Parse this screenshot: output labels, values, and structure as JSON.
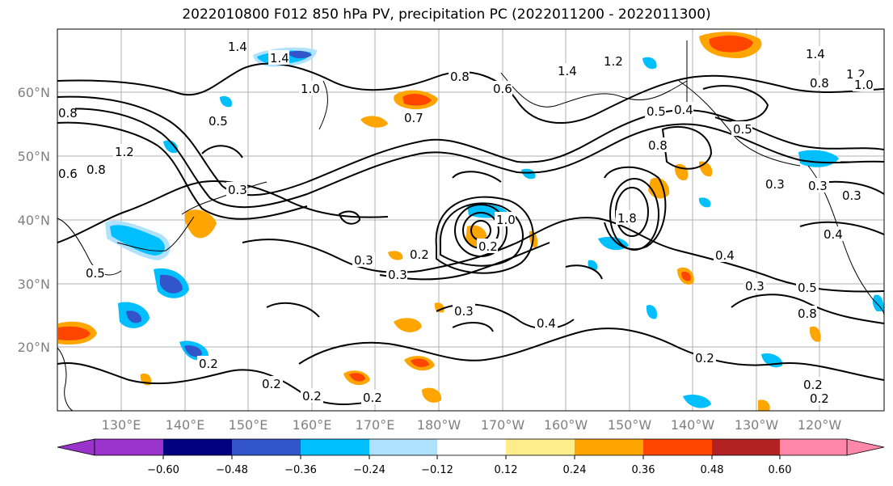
{
  "title": "2022010800 F012 850 hPa PV, precipitation PC (2022011200 - 2022011300)",
  "lat_labels": [
    "60°N",
    "50°N",
    "40°N",
    "30°N",
    "20°N"
  ],
  "lon_labels": [
    "130°E",
    "140°E",
    "150°E",
    "160°E",
    "170°E",
    "180°W",
    "170°W",
    "160°W",
    "150°W",
    "140°W",
    "130°W",
    "120°W"
  ],
  "colorbar": {
    "colors": [
      "#9933cc",
      "#000080",
      "#3355cc",
      "#00bfff",
      "#b0e2ff",
      "#ffffff",
      "#ffec8b",
      "#ffa500",
      "#ff4500",
      "#b22222",
      "#ff88aa"
    ],
    "ticks": [
      "−0.60",
      "−0.48",
      "−0.36",
      "−0.24",
      "−0.12",
      "0.12",
      "0.24",
      "0.36",
      "0.48",
      "0.60"
    ]
  },
  "contour_labels": [
    "1.4",
    "1.4",
    "1.0",
    "0.5",
    "1.2",
    "0.8",
    "0.6",
    "0.8",
    "0.3",
    "0.7",
    "0.8",
    "0.6",
    "1.4",
    "1.2",
    "0.5",
    "0.4",
    "0.5",
    "0.8",
    "1.4",
    "1.2",
    "1.0",
    "0.8",
    "0.3",
    "0.3",
    "0.3",
    "0.2",
    "0.3",
    "0.2",
    "0.3",
    "0.4",
    "0.4",
    "0.3",
    "0.5",
    "0.4",
    "0.8",
    "1.0",
    "0.2",
    "0.2",
    "0.2",
    "0.2",
    "0.2",
    "0.2",
    "0.2",
    "0.5",
    "1.8",
    "0.3"
  ]
}
